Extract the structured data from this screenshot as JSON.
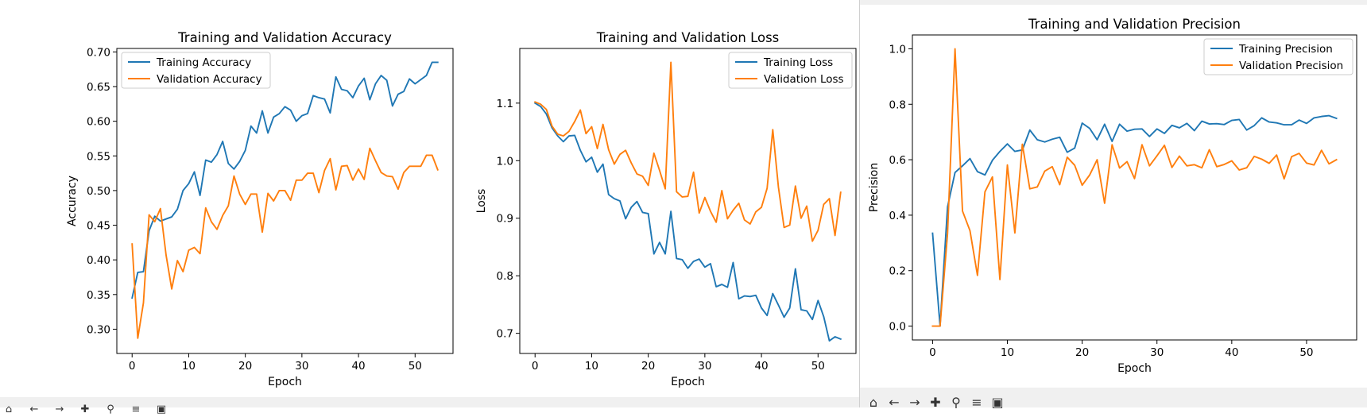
{
  "colors": {
    "training": "#1f77b4",
    "validation": "#ff7f0e",
    "axis": "#000000",
    "window_bg": "#ffffff",
    "window_edge": "#d0d0d0",
    "toolbar_bg": "#f0f0f0",
    "background": "#ffffff"
  },
  "toolbar": {
    "icons": [
      "home-icon",
      "back-arrow-icon",
      "forward-arrow-icon",
      "pan-icon",
      "zoom-icon",
      "configure-subplots-icon",
      "save-icon"
    ]
  },
  "chart_data": [
    {
      "type": "line",
      "title": "Training and Validation Accuracy",
      "xlabel": "Epoch",
      "ylabel": "Accuracy",
      "xlim": [
        -2.7,
        56.7
      ],
      "ylim": [
        0.265,
        0.705
      ],
      "xticks": [
        0,
        10,
        20,
        30,
        40,
        50
      ],
      "yticks": [
        0.3,
        0.35,
        0.4,
        0.45,
        0.5,
        0.55,
        0.6,
        0.65,
        0.7
      ],
      "legend": "upper left",
      "series": [
        {
          "name": "Training Accuracy",
          "color": "#1f77b4",
          "values": [
            0.345,
            0.382,
            0.383,
            0.442,
            0.463,
            0.456,
            0.459,
            0.462,
            0.473,
            0.5,
            0.51,
            0.527,
            0.493,
            0.544,
            0.541,
            0.552,
            0.571,
            0.539,
            0.531,
            0.542,
            0.558,
            0.593,
            0.583,
            0.615,
            0.583,
            0.606,
            0.611,
            0.621,
            0.616,
            0.6,
            0.608,
            0.611,
            0.637,
            0.634,
            0.632,
            0.612,
            0.664,
            0.646,
            0.644,
            0.634,
            0.651,
            0.662,
            0.631,
            0.654,
            0.666,
            0.659,
            0.622,
            0.639,
            0.643,
            0.661,
            0.654,
            0.66,
            0.666,
            0.685,
            0.685
          ]
        },
        {
          "name": "Validation Accuracy",
          "color": "#ff7f0e",
          "values": [
            0.423,
            0.287,
            0.338,
            0.465,
            0.455,
            0.474,
            0.407,
            0.358,
            0.399,
            0.383,
            0.414,
            0.418,
            0.409,
            0.475,
            0.455,
            0.444,
            0.464,
            0.478,
            0.521,
            0.495,
            0.48,
            0.495,
            0.495,
            0.44,
            0.496,
            0.485,
            0.5,
            0.5,
            0.486,
            0.515,
            0.515,
            0.525,
            0.525,
            0.497,
            0.529,
            0.546,
            0.501,
            0.535,
            0.536,
            0.515,
            0.531,
            0.516,
            0.561,
            0.543,
            0.526,
            0.521,
            0.52,
            0.502,
            0.526,
            0.535,
            0.535,
            0.535,
            0.551,
            0.551,
            0.53
          ]
        }
      ]
    },
    {
      "type": "line",
      "title": "Training and Validation Loss",
      "xlabel": "Epoch",
      "ylabel": "Loss",
      "xlim": [
        -2.7,
        56.7
      ],
      "ylim": [
        0.665,
        1.195
      ],
      "xticks": [
        0,
        10,
        20,
        30,
        40,
        50
      ],
      "yticks": [
        0.7,
        0.8,
        0.9,
        1.0,
        1.1
      ],
      "legend": "upper right",
      "series": [
        {
          "name": "Training Loss",
          "color": "#1f77b4",
          "values": [
            1.1,
            1.094,
            1.081,
            1.057,
            1.043,
            1.033,
            1.043,
            1.044,
            1.018,
            0.998,
            1.006,
            0.98,
            0.994,
            0.941,
            0.934,
            0.93,
            0.899,
            0.919,
            0.929,
            0.91,
            0.908,
            0.838,
            0.858,
            0.838,
            0.912,
            0.83,
            0.828,
            0.813,
            0.825,
            0.829,
            0.815,
            0.821,
            0.781,
            0.785,
            0.78,
            0.823,
            0.76,
            0.765,
            0.764,
            0.766,
            0.744,
            0.731,
            0.769,
            0.749,
            0.728,
            0.744,
            0.812,
            0.741,
            0.739,
            0.724,
            0.757,
            0.729,
            0.687,
            0.694,
            0.69
          ]
        },
        {
          "name": "Validation Loss",
          "color": "#ff7f0e",
          "values": [
            1.102,
            1.098,
            1.089,
            1.06,
            1.046,
            1.043,
            1.051,
            1.068,
            1.088,
            1.047,
            1.059,
            1.021,
            1.063,
            1.019,
            0.994,
            1.011,
            1.018,
            0.996,
            0.977,
            0.973,
            0.957,
            1.013,
            0.983,
            0.951,
            1.171,
            0.946,
            0.937,
            0.938,
            0.98,
            0.909,
            0.936,
            0.912,
            0.893,
            0.948,
            0.899,
            0.914,
            0.926,
            0.897,
            0.89,
            0.911,
            0.919,
            0.952,
            1.054,
            0.954,
            0.884,
            0.888,
            0.956,
            0.9,
            0.921,
            0.86,
            0.879,
            0.924,
            0.934,
            0.87,
            0.945
          ]
        }
      ]
    },
    {
      "type": "line",
      "title": "Training and Validation Precision",
      "xlabel": "Epoch",
      "ylabel": "Precision",
      "xlim": [
        -2.7,
        56.7
      ],
      "ylim": [
        -0.05,
        1.05
      ],
      "xticks": [
        0,
        10,
        20,
        30,
        40,
        50
      ],
      "yticks": [
        0.0,
        0.2,
        0.4,
        0.6,
        0.8,
        1.0
      ],
      "legend": "upper right",
      "series": [
        {
          "name": "Training Precision",
          "color": "#1f77b4",
          "values": [
            0.335,
            0.0,
            0.43,
            0.554,
            0.578,
            0.604,
            0.557,
            0.545,
            0.598,
            0.63,
            0.657,
            0.63,
            0.635,
            0.707,
            0.672,
            0.664,
            0.674,
            0.681,
            0.627,
            0.642,
            0.732,
            0.713,
            0.672,
            0.728,
            0.666,
            0.728,
            0.703,
            0.71,
            0.711,
            0.684,
            0.711,
            0.695,
            0.724,
            0.715,
            0.731,
            0.705,
            0.739,
            0.729,
            0.73,
            0.727,
            0.742,
            0.745,
            0.707,
            0.723,
            0.751,
            0.736,
            0.733,
            0.726,
            0.726,
            0.743,
            0.731,
            0.751,
            0.756,
            0.759,
            0.749
          ]
        },
        {
          "name": "Validation Precision",
          "color": "#ff7f0e",
          "values": [
            0.0,
            0.0,
            0.334,
            1.0,
            0.415,
            0.344,
            0.183,
            0.484,
            0.538,
            0.168,
            0.581,
            0.336,
            0.656,
            0.495,
            0.502,
            0.559,
            0.575,
            0.51,
            0.609,
            0.58,
            0.508,
            0.545,
            0.6,
            0.443,
            0.654,
            0.57,
            0.593,
            0.532,
            0.654,
            0.578,
            0.614,
            0.652,
            0.572,
            0.613,
            0.578,
            0.582,
            0.571,
            0.636,
            0.575,
            0.583,
            0.596,
            0.563,
            0.571,
            0.612,
            0.602,
            0.587,
            0.617,
            0.531,
            0.611,
            0.623,
            0.588,
            0.581,
            0.634,
            0.585,
            0.6
          ]
        }
      ]
    }
  ]
}
